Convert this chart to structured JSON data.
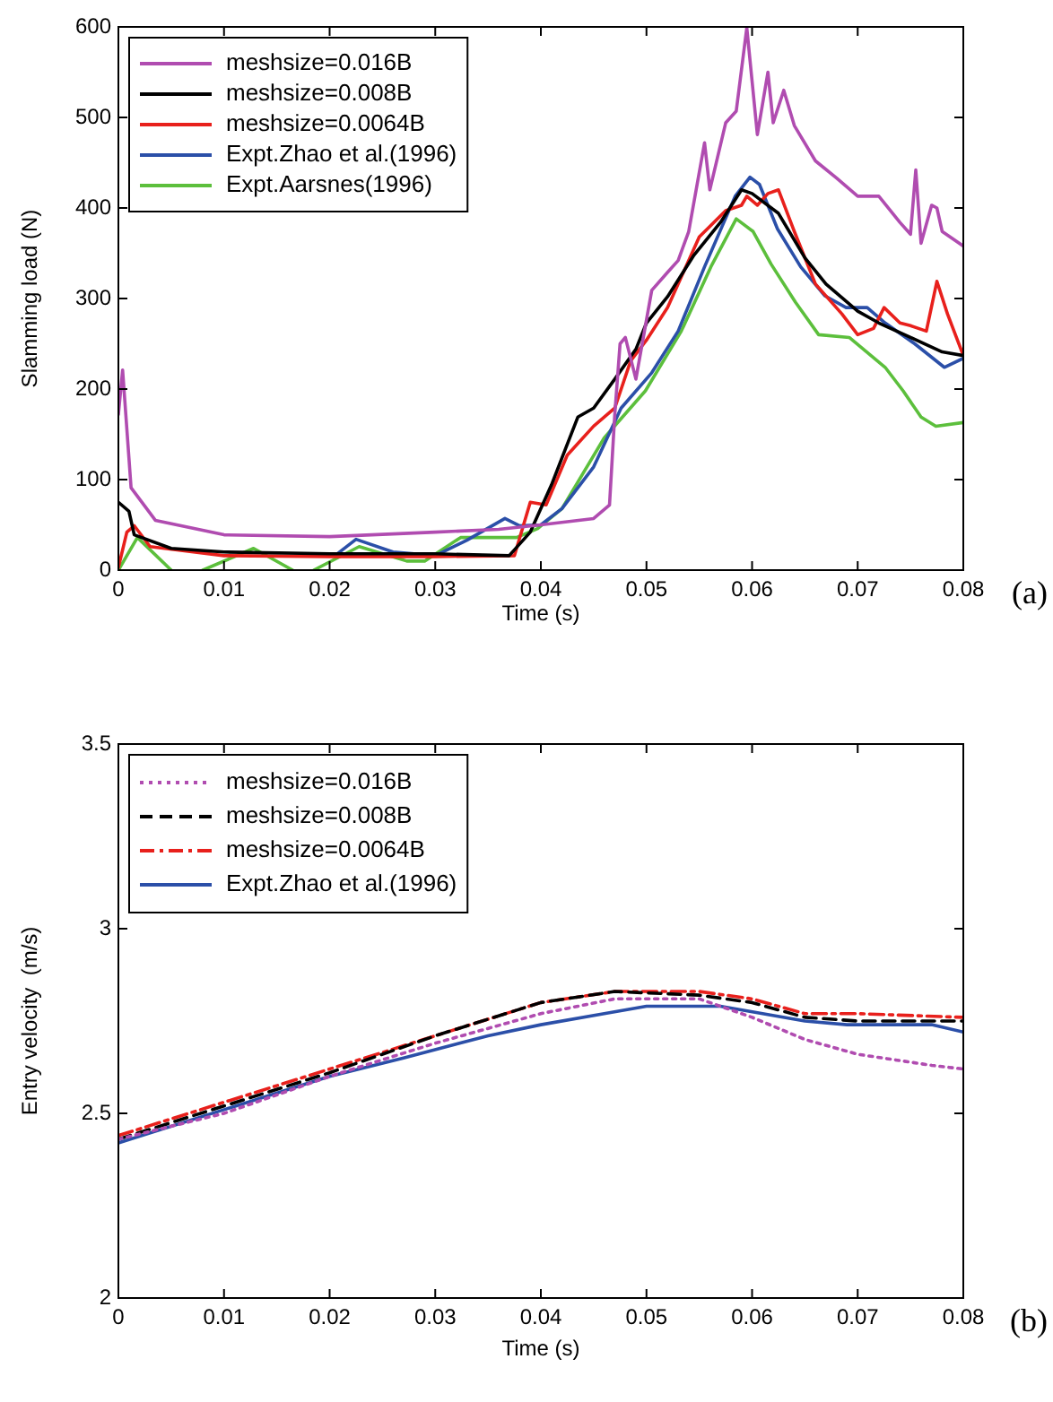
{
  "chart_data": [
    {
      "type": "line",
      "xlabel": "Time (s)",
      "ylabel": "Slamming load (N)",
      "annotations": [
        "(a)"
      ],
      "xlim": [
        0,
        0.08
      ],
      "ylim": [
        0,
        600
      ],
      "xticks": [
        0,
        0.01,
        0.02,
        0.03,
        0.04,
        0.05,
        0.06,
        0.07,
        0.08
      ],
      "yticks": [
        0,
        100,
        200,
        300,
        400,
        500,
        600
      ],
      "grid": false,
      "legend": "top left",
      "marker": "none",
      "line_style": "solid",
      "series": [
        {
          "name": "meshsize=0.016B",
          "color": "#b04cb0",
          "x": [
            0,
            0.0004,
            0.0012,
            0.0035,
            0.01,
            0.02,
            0.03,
            0.036,
            0.04,
            0.045,
            0.0465,
            0.047,
            0.0475,
            0.048,
            0.049,
            0.0505,
            0.052,
            0.053,
            0.054,
            0.0555,
            0.056,
            0.0575,
            0.0585,
            0.0595,
            0.0605,
            0.0615,
            0.062,
            0.063,
            0.064,
            0.066,
            0.068,
            0.07,
            0.072,
            0.074,
            0.075,
            0.0755,
            0.076,
            0.077,
            0.0775,
            0.078,
            0.08
          ],
          "values": [
            172,
            221,
            91,
            55,
            39,
            37,
            42,
            45,
            50,
            57,
            72,
            172,
            250,
            257,
            211,
            309,
            329,
            342,
            374,
            472,
            420,
            494,
            507,
            599,
            481,
            550,
            494,
            530,
            491,
            452,
            433,
            413,
            413,
            384,
            371,
            442,
            361,
            403,
            400,
            374,
            358
          ]
        },
        {
          "name": "meshsize=0.008B",
          "color": "#000000",
          "x": [
            0,
            0.001,
            0.0015,
            0.005,
            0.01,
            0.02,
            0.03,
            0.037,
            0.039,
            0.041,
            0.0435,
            0.045,
            0.047,
            0.049,
            0.05,
            0.052,
            0.0545,
            0.057,
            0.059,
            0.06,
            0.0625,
            0.065,
            0.067,
            0.07,
            0.072,
            0.075,
            0.078,
            0.08
          ],
          "values": [
            75,
            65,
            39,
            24,
            20,
            18,
            18,
            16,
            42,
            94,
            169,
            179,
            211,
            244,
            273,
            302,
            348,
            384,
            420,
            416,
            394,
            345,
            316,
            286,
            273,
            257,
            241,
            237
          ]
        },
        {
          "name": "meshsize=0.0064B",
          "color": "#e8201c",
          "x": [
            0,
            0.0008,
            0.0015,
            0.003,
            0.01,
            0.02,
            0.03,
            0.0375,
            0.039,
            0.0405,
            0.0425,
            0.045,
            0.047,
            0.0485,
            0.05,
            0.052,
            0.055,
            0.0575,
            0.059,
            0.0595,
            0.0605,
            0.0615,
            0.0625,
            0.064,
            0.066,
            0.0685,
            0.07,
            0.0715,
            0.0725,
            0.074,
            0.075,
            0.0765,
            0.0775,
            0.0785,
            0.08
          ],
          "values": [
            3,
            42,
            49,
            26,
            16,
            15,
            15,
            16,
            75,
            72,
            127,
            159,
            179,
            231,
            254,
            290,
            368,
            397,
            403,
            413,
            403,
            416,
            420,
            374,
            316,
            283,
            260,
            267,
            290,
            273,
            270,
            264,
            319,
            283,
            237
          ]
        },
        {
          "name": "Expt.Zhao et al.(1996)",
          "color": "#2b4fa8",
          "x": [
            0.0205,
            0.0225,
            0.026,
            0.03,
            0.033,
            0.0366,
            0.038,
            0.04,
            0.042,
            0.045,
            0.0476,
            0.0505,
            0.053,
            0.0555,
            0.0584,
            0.0598,
            0.0607,
            0.0624,
            0.0646,
            0.0669,
            0.0689,
            0.0709,
            0.0726,
            0.0754,
            0.0782,
            0.08
          ],
          "values": [
            16,
            34,
            20,
            16,
            33,
            57,
            49,
            50,
            68,
            114,
            179,
            218,
            264,
            335,
            413,
            434,
            426,
            377,
            335,
            303,
            290,
            290,
            273,
            250,
            224,
            234
          ]
        },
        {
          "name": "Expt.Aarsnes(1996)",
          "color": "#5cbf3c",
          "x": [
            0,
            0.0018,
            0.005,
            0.0065,
            0.008,
            0.0128,
            0.0165,
            0.0175,
            0.0185,
            0.0228,
            0.0273,
            0.029,
            0.0324,
            0.0377,
            0.0397,
            0.042,
            0.046,
            0.0499,
            0.0533,
            0.0561,
            0.0585,
            0.0601,
            0.0618,
            0.0641,
            0.0663,
            0.0692,
            0.0726,
            0.0743,
            0.076,
            0.0774,
            0.08
          ],
          "values": [
            0,
            36,
            0,
            null,
            0,
            24,
            0,
            null,
            0,
            26,
            10,
            10,
            36,
            36,
            46,
            68,
            146,
            198,
            264,
            335,
            388,
            374,
            338,
            296,
            260,
            257,
            224,
            198,
            169,
            159,
            163
          ]
        }
      ]
    },
    {
      "type": "line",
      "xlabel": "Time (s)",
      "ylabel": "Entry velocity  (m/s)",
      "annotations": [
        "(b)"
      ],
      "xlim": [
        0,
        0.08
      ],
      "ylim": [
        2,
        3.5
      ],
      "xticks": [
        0,
        0.01,
        0.02,
        0.03,
        0.04,
        0.05,
        0.06,
        0.07,
        0.08
      ],
      "yticks": [
        2,
        2.5,
        3,
        3.5
      ],
      "grid": false,
      "legend": "top left",
      "marker": "none",
      "series": [
        {
          "name": "meshsize=0.016B",
          "color": "#b04cb0",
          "line_style": "dotted",
          "x": [
            0,
            0.01,
            0.02,
            0.03,
            0.04,
            0.047,
            0.055,
            0.06,
            0.065,
            0.07,
            0.077,
            0.08
          ],
          "values": [
            2.43,
            2.5,
            2.6,
            2.69,
            2.77,
            2.81,
            2.81,
            2.76,
            2.7,
            2.66,
            2.63,
            2.62
          ]
        },
        {
          "name": "meshsize=0.008B",
          "color": "#000000",
          "line_style": "dashed",
          "x": [
            0,
            0.01,
            0.02,
            0.03,
            0.04,
            0.047,
            0.055,
            0.06,
            0.065,
            0.07,
            0.08
          ],
          "values": [
            2.43,
            2.52,
            2.61,
            2.71,
            2.8,
            2.83,
            2.82,
            2.8,
            2.76,
            2.75,
            2.75
          ]
        },
        {
          "name": "meshsize=0.0064B",
          "color": "#e8201c",
          "line_style": "dashdot",
          "x": [
            0,
            0.01,
            0.02,
            0.03,
            0.04,
            0.047,
            0.055,
            0.06,
            0.065,
            0.07,
            0.08
          ],
          "values": [
            2.44,
            2.53,
            2.62,
            2.71,
            2.8,
            2.83,
            2.83,
            2.81,
            2.77,
            2.77,
            2.76
          ]
        },
        {
          "name": "Expt.Zhao et al.(1996)",
          "color": "#2b4fa8",
          "line_style": "solid",
          "x": [
            0,
            0.01,
            0.02,
            0.027,
            0.035,
            0.04,
            0.046,
            0.05,
            0.057,
            0.065,
            0.069,
            0.077,
            0.08
          ],
          "values": [
            2.42,
            2.51,
            2.6,
            2.65,
            2.71,
            2.74,
            2.77,
            2.79,
            2.79,
            2.75,
            2.74,
            2.74,
            2.72
          ]
        }
      ]
    }
  ]
}
